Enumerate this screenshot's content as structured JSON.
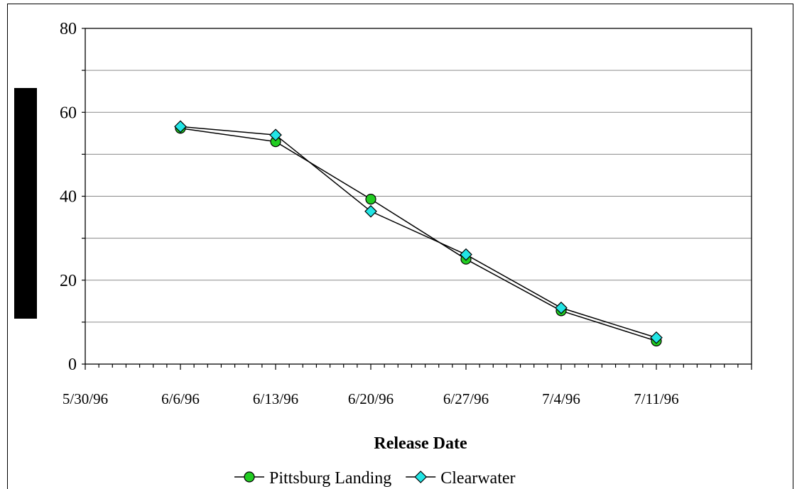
{
  "chart_data": {
    "type": "line",
    "xlabel": "Release Date",
    "ylabel": "",
    "ylim": [
      0,
      80
    ],
    "yticks": [
      "0",
      "20",
      "40",
      "60",
      "80"
    ],
    "xlim": [
      "1996-05-30",
      "1996-07-18"
    ],
    "xticks": [
      {
        "date": "1996-05-30",
        "label": "5/30/96"
      },
      {
        "date": "1996-06-06",
        "label": "6/6/96"
      },
      {
        "date": "1996-06-13",
        "label": "6/13/96"
      },
      {
        "date": "1996-06-20",
        "label": "6/20/96"
      },
      {
        "date": "1996-06-27",
        "label": "6/27/96"
      },
      {
        "date": "1996-07-04",
        "label": "7/4/96"
      },
      {
        "date": "1996-07-11",
        "label": "7/11/96"
      }
    ],
    "grid": "horizontal",
    "legend": "bottom",
    "series": [
      {
        "name": "Pittsburg Landing",
        "marker": "circle",
        "color": "#22cc22",
        "x": [
          "1996-06-06",
          "1996-06-13",
          "1996-06-20",
          "1996-06-27",
          "1996-07-04",
          "1996-07-11"
        ],
        "y": [
          56.2,
          53.0,
          39.3,
          25.0,
          12.7,
          5.5
        ]
      },
      {
        "name": "Clearwater",
        "marker": "diamond",
        "color": "#22e5e5",
        "x": [
          "1996-06-06",
          "1996-06-13",
          "1996-06-20",
          "1996-06-27",
          "1996-07-04",
          "1996-07-11"
        ],
        "y": [
          56.6,
          54.6,
          36.4,
          26.1,
          13.4,
          6.3
        ]
      }
    ]
  }
}
